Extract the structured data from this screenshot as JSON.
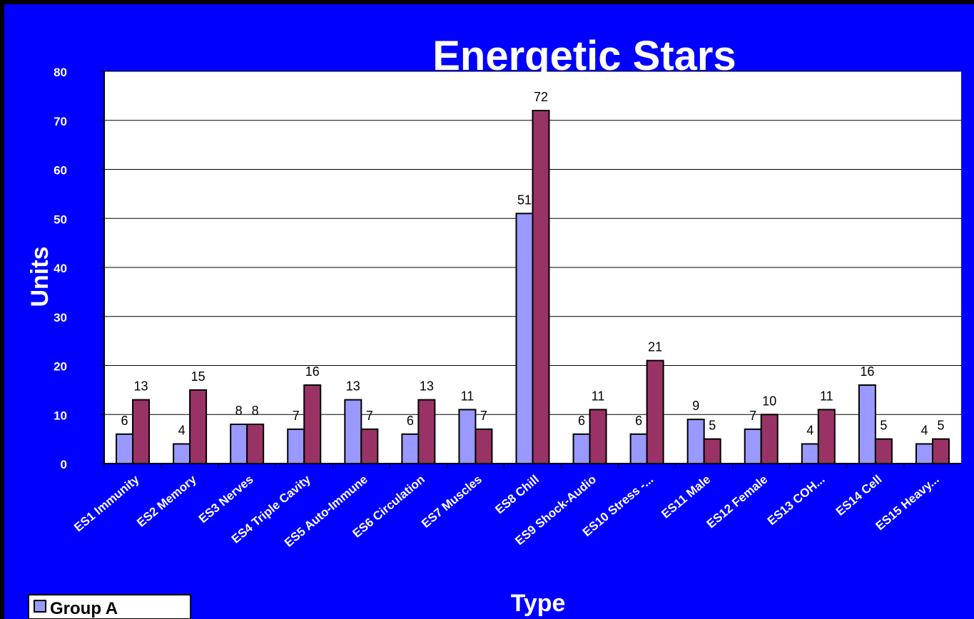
{
  "chart_data": {
    "type": "bar",
    "title": "Energetic Stars",
    "xlabel": "Type",
    "ylabel": "Units",
    "ylim": [
      0,
      80
    ],
    "yticks": [
      "0",
      "10",
      "20",
      "30",
      "40",
      "50",
      "60",
      "70",
      "80"
    ],
    "grid": true,
    "legend_position": "bottom-left",
    "categories": [
      "ES1 Immunity",
      "ES2 Memory",
      "ES3 Nerves",
      "ES4 Triple Cavity",
      "ES5 Auto-Immune",
      "ES6 Circulation",
      "ES7 Muscles",
      "ES8 Chill",
      "ES9 Shock-Audio",
      "ES10 Stress -...",
      "ES11 Male",
      "ES12 Female",
      "ES13 COH...",
      "ES14 Cell",
      "ES15 Heavy..."
    ],
    "series": [
      {
        "name": "Group A",
        "color": "#9999FF",
        "values": [
          6,
          4,
          8,
          7,
          13,
          6,
          11,
          51,
          6,
          6,
          9,
          7,
          4,
          16,
          4
        ]
      },
      {
        "color": "#993366",
        "values": [
          13,
          15,
          8,
          16,
          7,
          13,
          7,
          72,
          11,
          21,
          5,
          10,
          11,
          5,
          5
        ]
      }
    ],
    "colors": {
      "background": "#0000FF",
      "plot_area": "#FFFFFF",
      "text": "#FFFFFF",
      "bar_outline": "#000000"
    }
  }
}
